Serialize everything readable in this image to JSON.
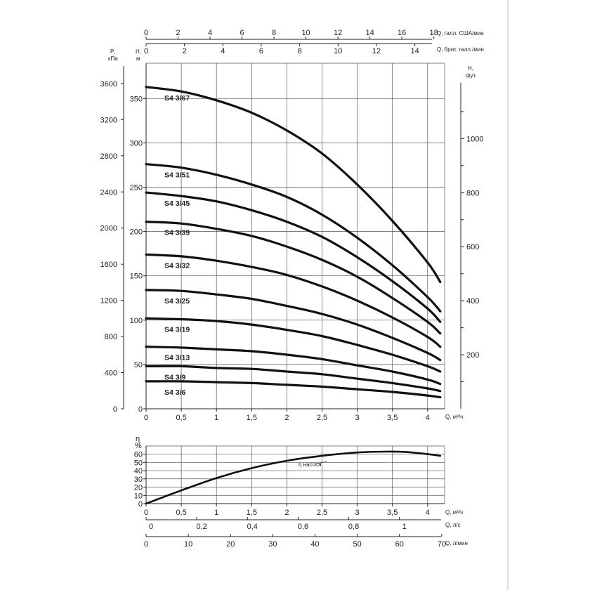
{
  "chart_data": [
    {
      "type": "line",
      "x": [
        0,
        0.5,
        1,
        1.5,
        2,
        2.5,
        3,
        3.5,
        4
      ],
      "xlim": [
        0,
        4.2
      ],
      "ylim": [
        0,
        370
      ],
      "xticks": [
        "0",
        "0,5",
        "1",
        "1,5",
        "2",
        "2,5",
        "3",
        "3,5",
        "4"
      ],
      "yticks_h_m": [
        "0",
        "50",
        "100",
        "150",
        "200",
        "250",
        "300",
        "350"
      ],
      "yticks_p_kpa": [
        "0",
        "400",
        "800",
        "1200",
        "1600",
        "2000",
        "2400",
        "2800",
        "3200",
        "3600"
      ],
      "yticks_h_ft": [
        "200",
        "400",
        "600",
        "800",
        "1000"
      ],
      "xticks_usgpm": [
        "0",
        "2",
        "4",
        "6",
        "8",
        "10",
        "12",
        "14",
        "16",
        "18"
      ],
      "xticks_ukgpm": [
        "0",
        "2",
        "4",
        "6",
        "8",
        "10",
        "12",
        "14"
      ],
      "labels": {
        "p_kpa": [
          "P,",
          "кПа"
        ],
        "h_m": [
          "H,",
          "м"
        ],
        "h_ft": [
          "H,",
          "фут."
        ],
        "q_usgpm": "Q, галл. США/мин",
        "q_ukgpm": "Q, брит. галл./мин",
        "q_m3h": "Q, м³/ч"
      },
      "series": [
        {
          "name": "S4 3/67",
          "x": [
            0,
            0.5,
            1,
            1.5,
            2,
            2.5,
            3,
            3.5,
            4,
            4.18
          ],
          "values": [
            363,
            358,
            348,
            334,
            314,
            288,
            253,
            212,
            165,
            143
          ]
        },
        {
          "name": "S4 3/51",
          "x": [
            0,
            0.5,
            1,
            1.5,
            2,
            2.5,
            3,
            3.5,
            4,
            4.18
          ],
          "values": [
            276,
            272,
            264,
            253,
            239,
            219,
            193,
            162,
            126,
            110
          ]
        },
        {
          "name": "S4 3/45",
          "x": [
            0,
            0.5,
            1,
            1.5,
            2,
            2.5,
            3,
            3.5,
            4,
            4.18
          ],
          "values": [
            244,
            240,
            234,
            224,
            211,
            194,
            171,
            144,
            113,
            98
          ]
        },
        {
          "name": "S4 3/39",
          "x": [
            0,
            0.5,
            1,
            1.5,
            2,
            2.5,
            3,
            3.5,
            4,
            4.18
          ],
          "values": [
            211,
            209,
            203,
            195,
            183,
            168,
            149,
            125,
            98,
            85
          ]
        },
        {
          "name": "S4 3/32",
          "x": [
            0,
            0.5,
            1,
            1.5,
            2,
            2.5,
            3,
            3.5,
            4,
            4.18
          ],
          "values": [
            174,
            172,
            167,
            160,
            151,
            138,
            122,
            103,
            81,
            70
          ]
        },
        {
          "name": "S4 3/25",
          "x": [
            0,
            0.5,
            1,
            1.5,
            2,
            2.5,
            3,
            3.5,
            4,
            4.18
          ],
          "values": [
            134,
            133,
            129,
            124,
            116,
            107,
            95,
            80,
            63,
            55
          ]
        },
        {
          "name": "S4 3/19",
          "x": [
            0,
            0.5,
            1,
            1.5,
            2,
            2.5,
            3,
            3.5,
            4,
            4.18
          ],
          "values": [
            102,
            101,
            99,
            95,
            89,
            82,
            72,
            61,
            48,
            42
          ]
        },
        {
          "name": "S4 3/13",
          "x": [
            0,
            0.5,
            1,
            1.5,
            2,
            2.5,
            3,
            3.5,
            4,
            4.18
          ],
          "values": [
            70,
            69,
            67,
            65,
            61,
            56,
            49,
            42,
            33,
            28
          ]
        },
        {
          "name": "S4 3/9",
          "x": [
            0,
            0.5,
            1,
            1.5,
            2,
            2.5,
            3,
            3.5,
            4,
            4.18
          ],
          "values": [
            48,
            48,
            46,
            45,
            42,
            39,
            34,
            29,
            23,
            20
          ]
        },
        {
          "name": "S4 3/6",
          "x": [
            0,
            0.5,
            1,
            1.5,
            2,
            2.5,
            3,
            3.5,
            4,
            4.18
          ],
          "values": [
            31,
            31,
            30,
            29,
            27,
            25,
            22,
            19,
            15,
            13
          ]
        }
      ]
    },
    {
      "type": "line",
      "x": [
        0,
        0.5,
        1,
        1.5,
        2,
        2.5,
        3,
        3.5,
        4,
        4.18
      ],
      "xlim": [
        0,
        4.2
      ],
      "ylim": [
        0,
        70
      ],
      "xticks": [
        "0",
        "0,5",
        "1",
        "1,5",
        "2",
        "2,5",
        "3",
        "3,5",
        "4"
      ],
      "yticks": [
        "0",
        "10",
        "20",
        "30",
        "40",
        "50",
        "60"
      ],
      "xticks_ls": [
        "0",
        "0,2",
        "0,4",
        "0,6",
        "0,8",
        "1"
      ],
      "xticks_lpm": [
        "0",
        "10",
        "20",
        "30",
        "40",
        "50",
        "60",
        "70"
      ],
      "labels": {
        "eta": [
          "η",
          "%"
        ],
        "q_m3h": "Q, м³/ч",
        "q_ls": "Q, л/с",
        "q_lpm": "Q, л/мин",
        "curve": "η насоса"
      },
      "series": [
        {
          "name": "η насоса",
          "x": [
            0,
            0.5,
            1,
            1.5,
            2,
            2.5,
            3,
            3.4,
            3.7,
            4,
            4.18
          ],
          "values": [
            0,
            16,
            31,
            43,
            52,
            58,
            62,
            63,
            62.5,
            60,
            58
          ]
        }
      ]
    }
  ]
}
